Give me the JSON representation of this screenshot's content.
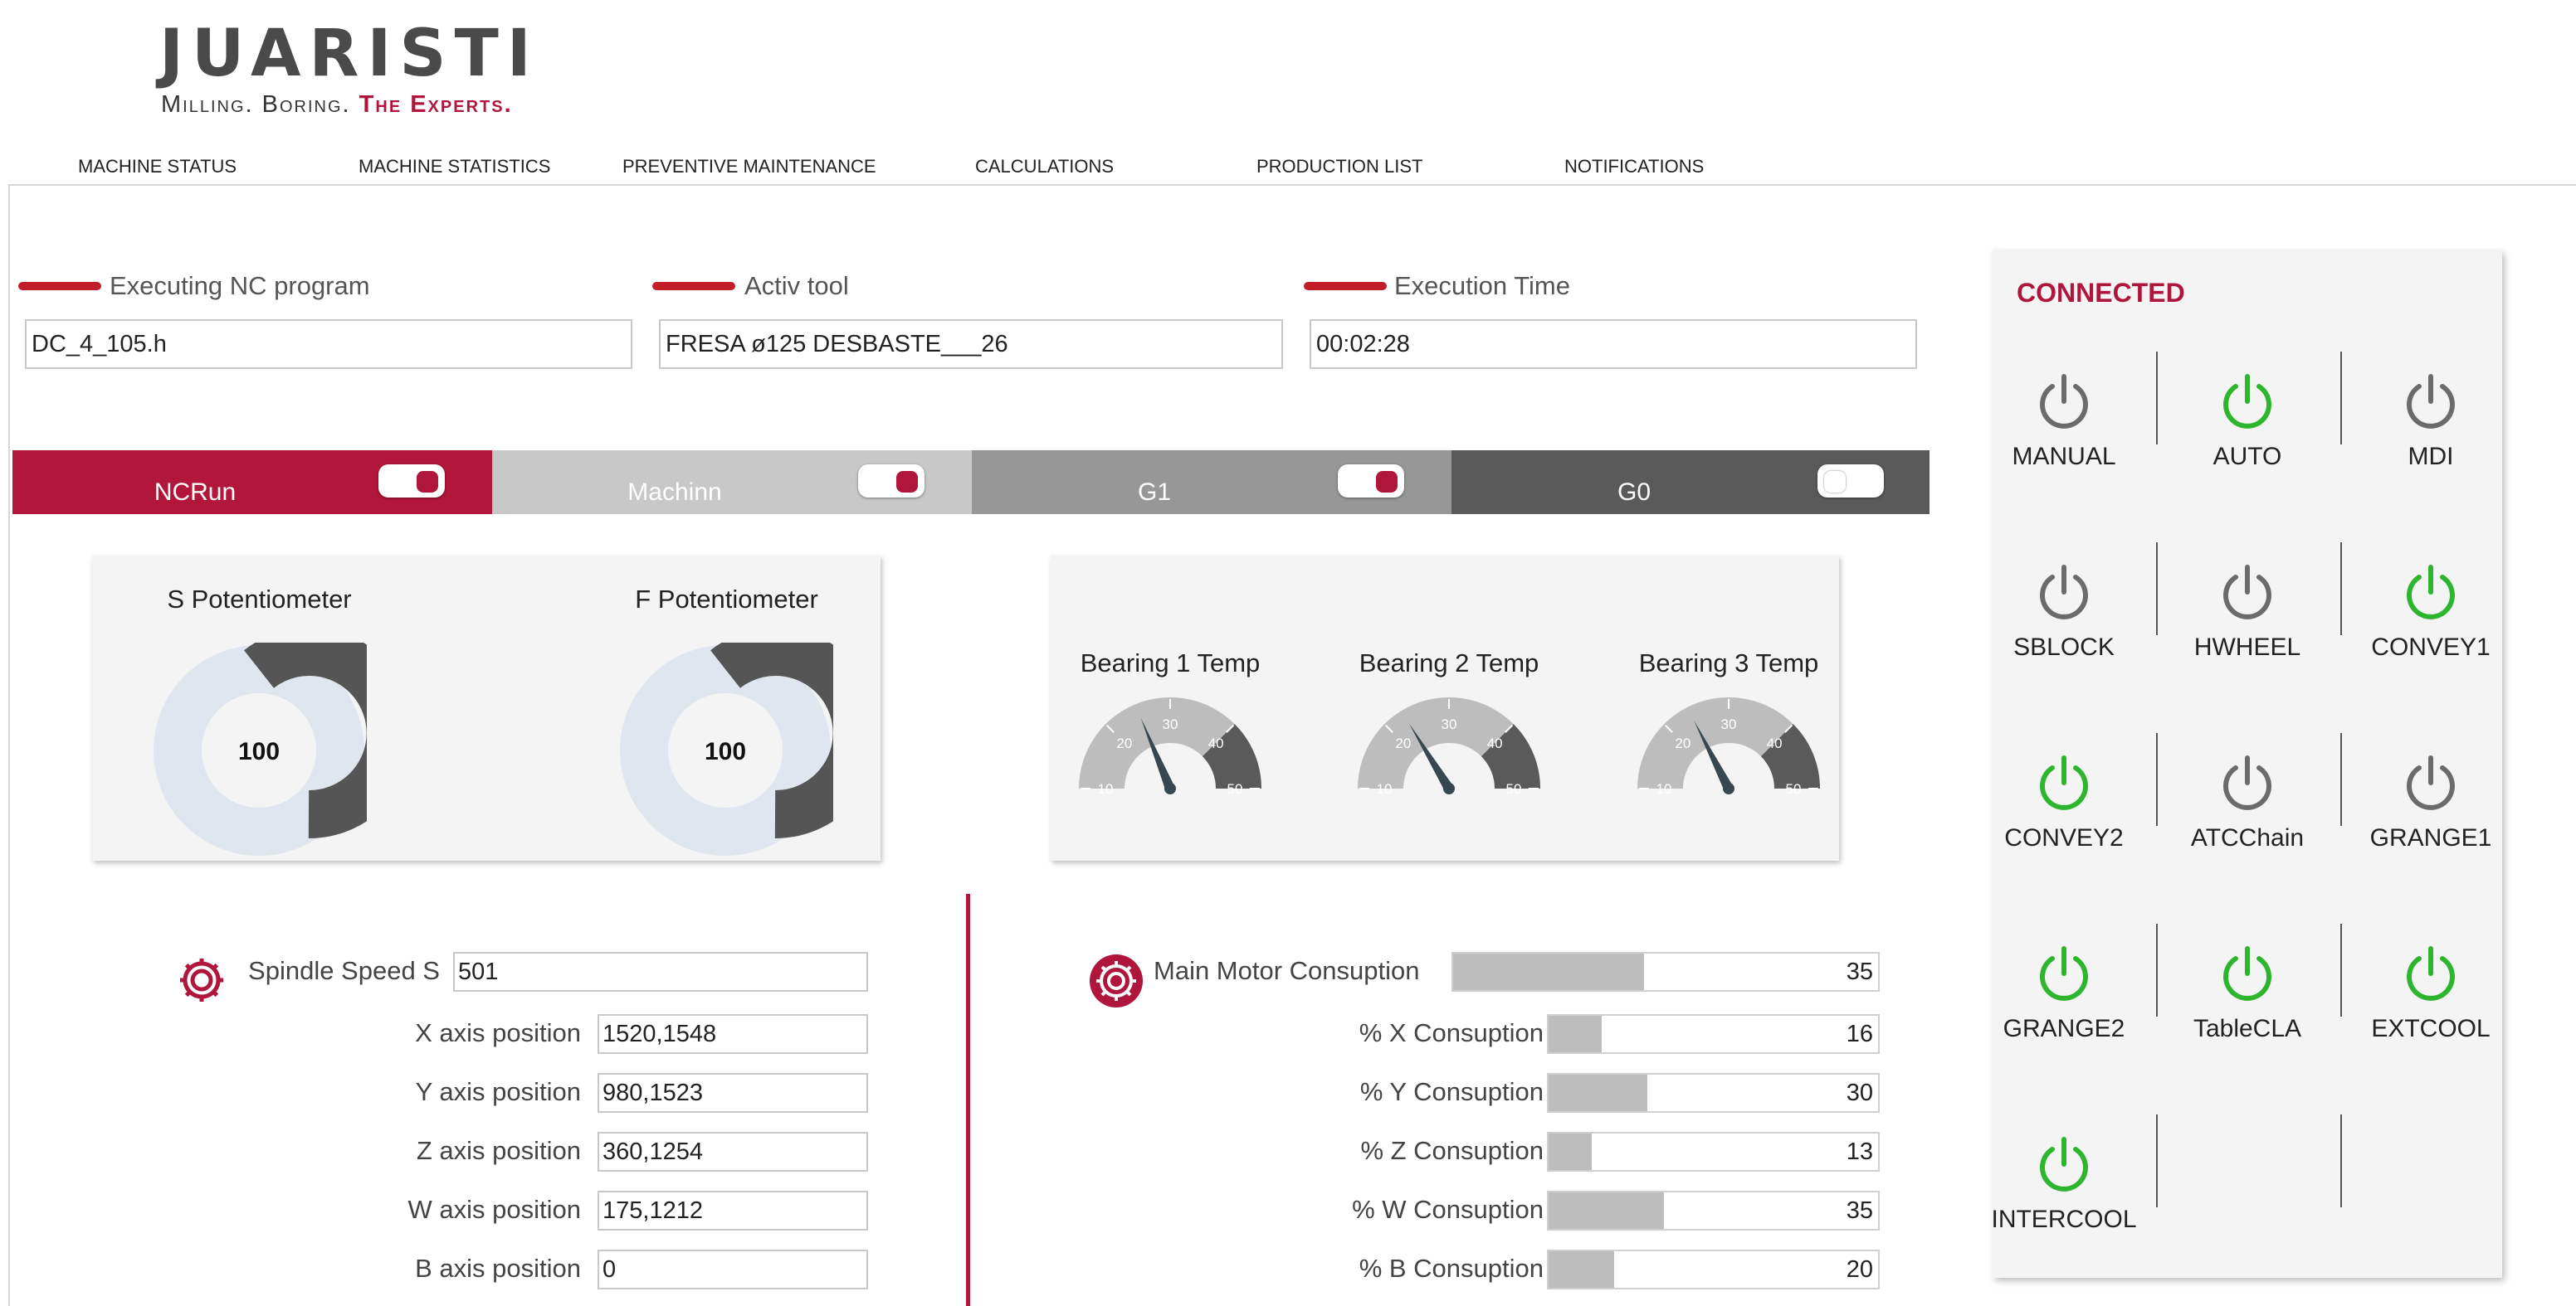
{
  "logo": {
    "main": "JUARISTI",
    "sub_plain": "Milling. Boring. ",
    "sub_accent": "The Experts."
  },
  "nav": [
    "MACHINE STATUS",
    "MACHINE STATISTICS",
    "PREVENTIVE MAINTENANCE",
    "CALCULATIONS",
    "PRODUCTION LIST",
    "NOTIFICATIONS"
  ],
  "info": {
    "nc_program": {
      "label": "Executing NC program",
      "value": "DC_4_105.h"
    },
    "active_tool": {
      "label": "Activ tool",
      "value": "FRESA ø125 DESBASTE___26"
    },
    "execution_time": {
      "label": "Execution Time",
      "value": "00:02:28"
    }
  },
  "status_strip": [
    {
      "label": "NCRun",
      "on": true,
      "bg": "#b2163a",
      "text_color": "#ffffff"
    },
    {
      "label": "Machinn",
      "on": true,
      "bg": "#c8c8c8",
      "text_color": "#ffffff"
    },
    {
      "label": "G1",
      "on": true,
      "bg": "#979797",
      "text_color": "#ffffff"
    },
    {
      "label": "G0",
      "on": false,
      "bg": "#5a5a5a",
      "text_color": "#ffffff"
    }
  ],
  "potentiometers": [
    {
      "label": "S Potentiometer",
      "value": "100"
    },
    {
      "label": "F Potentiometer",
      "value": "100"
    }
  ],
  "bearings": {
    "ticks": [
      "10",
      "20",
      "30",
      "40",
      "50"
    ],
    "items": [
      {
        "label": "Bearing 1 Temp",
        "value": 25
      },
      {
        "label": "Bearing 2 Temp",
        "value": 23
      },
      {
        "label": "Bearing 3 Temp",
        "value": 24
      }
    ]
  },
  "axes": {
    "spindle": {
      "label": "Spindle Speed S",
      "value": "501"
    },
    "rows": [
      {
        "label": "X axis position",
        "value": "1520,1548"
      },
      {
        "label": "Y axis position",
        "value": "980,1523"
      },
      {
        "label": "Z axis position",
        "value": "360,1254"
      },
      {
        "label": "W axis position",
        "value": "175,1212"
      },
      {
        "label": "B axis position",
        "value": "0"
      }
    ]
  },
  "consumption": {
    "main": {
      "label": "Main Motor Consuption",
      "value": "35",
      "fill_percent": 45
    },
    "rows": [
      {
        "label": "% X Consuption",
        "value": "16",
        "fill_percent": 16
      },
      {
        "label": "% Y Consuption",
        "value": "30",
        "fill_percent": 30
      },
      {
        "label": "% Z Consuption",
        "value": "13",
        "fill_percent": 13
      },
      {
        "label": "% W Consuption",
        "value": "35",
        "fill_percent": 35
      },
      {
        "label": "% B Consuption",
        "value": "20",
        "fill_percent": 20
      }
    ]
  },
  "connection": {
    "status": "CONNECTED",
    "colors": {
      "on": "#2db52d",
      "off": "#6b6b6b",
      "accent": "#b0163c"
    },
    "modes": [
      {
        "label": "MANUAL",
        "on": false
      },
      {
        "label": "AUTO",
        "on": true
      },
      {
        "label": "MDI",
        "on": false
      },
      {
        "label": "SBLOCK",
        "on": false
      },
      {
        "label": "HWHEEL",
        "on": false
      },
      {
        "label": "CONVEY1",
        "on": true
      },
      {
        "label": "CONVEY2",
        "on": true
      },
      {
        "label": "ATCChain",
        "on": false
      },
      {
        "label": "GRANGE1",
        "on": false
      },
      {
        "label": "GRANGE2",
        "on": true
      },
      {
        "label": "TableCLA",
        "on": true
      },
      {
        "label": "EXTCOOL",
        "on": true
      },
      {
        "label": "INTERCOOL",
        "on": true
      }
    ]
  }
}
